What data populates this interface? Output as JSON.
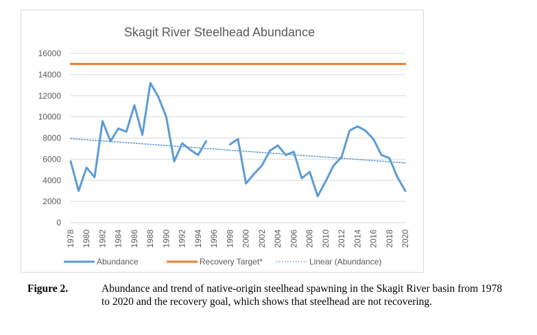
{
  "chart_data": {
    "type": "line",
    "title": "Skagit River Steelhead Abundance",
    "xlabel": "",
    "ylabel": "",
    "ylim": [
      0,
      16000
    ],
    "yticks": [
      0,
      2000,
      4000,
      6000,
      8000,
      10000,
      12000,
      14000,
      16000
    ],
    "xlim": [
      1978,
      2020
    ],
    "xticks": [
      "1978",
      "1980",
      "1982",
      "1984",
      "1986",
      "1988",
      "1990",
      "1992",
      "1994",
      "1996",
      "1998",
      "2000",
      "2002",
      "2004",
      "2006",
      "2008",
      "2010",
      "2012",
      "2014",
      "2016",
      "2018",
      "2020"
    ],
    "grid": true,
    "legend_position": "bottom",
    "series": [
      {
        "name": "Abundance",
        "style": "solid",
        "color": "#5b9bd5",
        "x": [
          1978,
          1979,
          1980,
          1981,
          1982,
          1983,
          1984,
          1985,
          1986,
          1987,
          1988,
          1989,
          1990,
          1991,
          1992,
          1993,
          1994,
          1995,
          1996,
          1997,
          1998,
          1999,
          2000,
          2001,
          2002,
          2003,
          2004,
          2005,
          2006,
          2007,
          2008,
          2009,
          2010,
          2011,
          2012,
          2013,
          2014,
          2015,
          2016,
          2017,
          2018,
          2019,
          2020
        ],
        "values": [
          5800,
          3000,
          5200,
          4300,
          9600,
          7700,
          8900,
          8600,
          11100,
          8300,
          13200,
          11900,
          10000,
          5800,
          7500,
          6900,
          6400,
          7700,
          null,
          null,
          7400,
          7900,
          3700,
          4600,
          5400,
          6800,
          7300,
          6400,
          6700,
          4200,
          4800,
          2500,
          3900,
          5400,
          6200,
          8700,
          9100,
          8700,
          7900,
          6400,
          6100,
          4300,
          3000
        ]
      },
      {
        "name": "Recovery Target*",
        "style": "solid",
        "color": "#ed7d31",
        "x": [
          1978,
          2020
        ],
        "values": [
          15000,
          15000
        ]
      },
      {
        "name": "Linear (Abundance)",
        "style": "dotted",
        "color": "#5b9bd5",
        "x": [
          1978,
          2020
        ],
        "values": [
          7950,
          5650
        ]
      }
    ]
  },
  "caption": {
    "label": "Figure 2.",
    "text": "Abundance and trend of native-origin steelhead spawning in the Skagit River basin from 1978 to 2020 and the recovery goal, which shows that steelhead are not recovering."
  }
}
